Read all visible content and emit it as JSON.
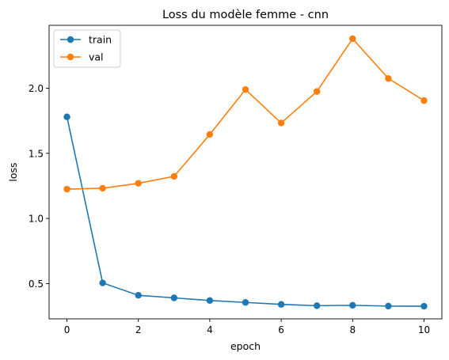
{
  "chart_data": {
    "type": "line",
    "title": "Loss du modèle femme - cnn",
    "xlabel": "epoch",
    "ylabel": "loss",
    "x": [
      0,
      1,
      2,
      3,
      4,
      5,
      6,
      7,
      8,
      9,
      10
    ],
    "xlim": [
      -0.5,
      10.5
    ],
    "ylim": [
      0.229,
      2.483
    ],
    "xticks": [
      0,
      2,
      4,
      6,
      8,
      10
    ],
    "yticks": [
      0.5,
      1.0,
      1.5,
      2.0
    ],
    "grid": false,
    "legend_position": "upper-left",
    "series": [
      {
        "name": "train",
        "color": "#1f77b4",
        "values": [
          1.78,
          0.505,
          0.41,
          0.39,
          0.37,
          0.355,
          0.34,
          0.33,
          0.333,
          0.327,
          0.326
        ]
      },
      {
        "name": "val",
        "color": "#ff7f0e",
        "values": [
          1.225,
          1.232,
          1.27,
          1.323,
          1.645,
          1.99,
          1.733,
          1.975,
          2.38,
          2.075,
          1.905
        ]
      }
    ]
  }
}
